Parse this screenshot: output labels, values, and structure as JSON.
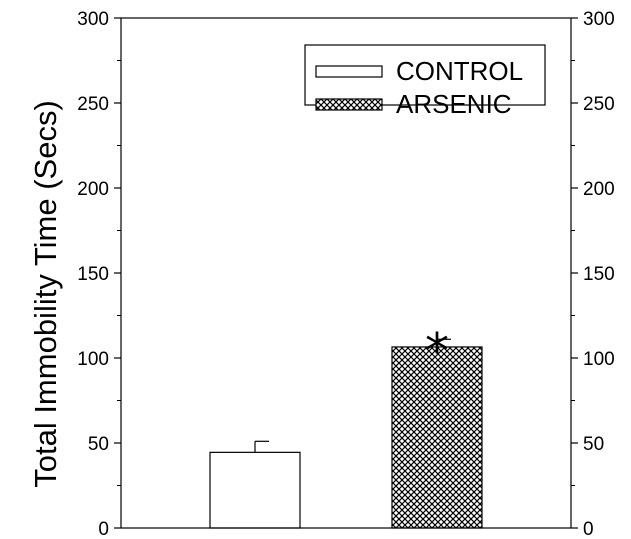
{
  "chart_data": {
    "type": "bar",
    "title": "",
    "xlabel": "",
    "ylabel": "Total Immobility Time (Secs)",
    "ylim": [
      0,
      300
    ],
    "yticks": [
      0,
      50,
      100,
      150,
      200,
      250,
      300
    ],
    "minor_tick_step": 25,
    "right_axis_ticks": true,
    "grid": false,
    "legend_position": "top-right",
    "series": [
      {
        "name": "CONTROL",
        "value": 44.5,
        "error": 6.5,
        "fill": "white"
      },
      {
        "name": "ARSENIC",
        "value": 106.5,
        "error": 4.5,
        "fill": "crosshatch"
      }
    ],
    "annotations": [
      {
        "text": "*",
        "series": "ARSENIC"
      }
    ]
  }
}
